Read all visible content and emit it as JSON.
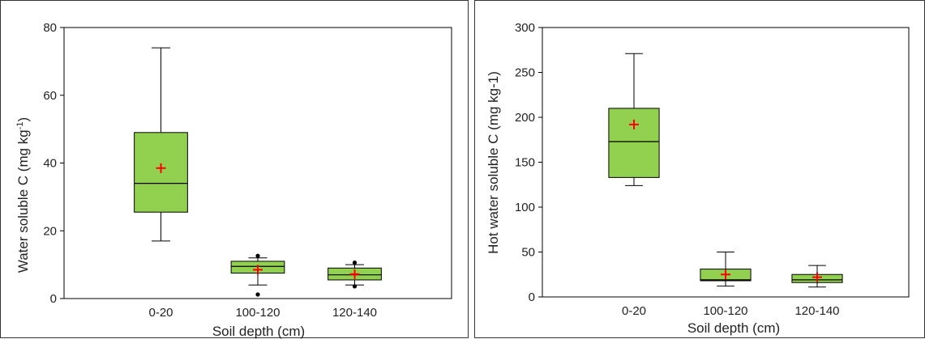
{
  "chart_data": [
    {
      "type": "box",
      "title": "",
      "xlabel": "Soil depth (cm)",
      "ylabel_main": "Water soluble C (mg kg",
      "ylabel_sup": "-1",
      "ylabel_tail": ")",
      "ylim": [
        0,
        80
      ],
      "yticks": [
        0,
        20,
        40,
        60,
        80
      ],
      "categories": [
        "0-20",
        "100-120",
        "120-140"
      ],
      "boxes": [
        {
          "category": "0-20",
          "min": 17,
          "q1": 25.5,
          "median": 34,
          "q3": 49,
          "max": 74,
          "mean": 38.5,
          "outliers": []
        },
        {
          "category": "100-120",
          "min": 4,
          "q1": 7.5,
          "median": 9.5,
          "q3": 11,
          "max": 12,
          "mean": 8.5,
          "outliers": [
            1.2,
            12.6
          ]
        },
        {
          "category": "120-140",
          "min": 4,
          "q1": 5.5,
          "median": 7,
          "q3": 9,
          "max": 10,
          "mean": 7.2,
          "outliers": [
            3.6,
            10.6
          ]
        }
      ],
      "colors": {
        "box_fill": "#92d050",
        "mean_marker": "#ff0000",
        "line": "#000000"
      }
    },
    {
      "type": "box",
      "title": "",
      "xlabel": "Soil depth (cm)",
      "ylabel_main": "Hot water soluble C (mg kg-1)",
      "ylim": [
        0,
        300
      ],
      "yticks": [
        0,
        50,
        100,
        150,
        200,
        250,
        300
      ],
      "categories": [
        "0-20",
        "100-120",
        "120-140"
      ],
      "boxes": [
        {
          "category": "0-20",
          "min": 124,
          "q1": 133,
          "median": 173,
          "q3": 210,
          "max": 271,
          "mean": 192,
          "outliers": []
        },
        {
          "category": "100-120",
          "min": 12,
          "q1": 18,
          "median": 19,
          "q3": 31,
          "max": 50,
          "mean": 25,
          "outliers": []
        },
        {
          "category": "120-140",
          "min": 11,
          "q1": 16,
          "median": 19,
          "q3": 25,
          "max": 35,
          "mean": 22,
          "outliers": []
        }
      ],
      "colors": {
        "box_fill": "#92d050",
        "mean_marker": "#ff0000",
        "line": "#000000"
      }
    }
  ]
}
